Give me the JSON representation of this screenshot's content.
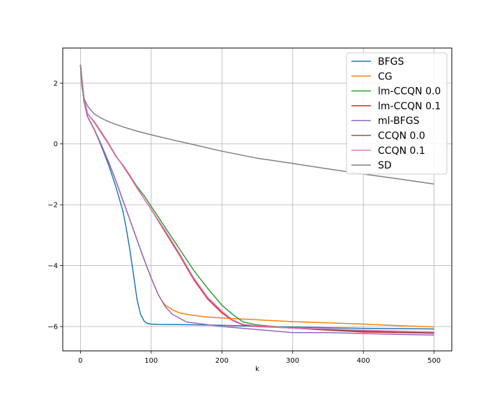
{
  "chart_data": {
    "type": "line",
    "title": "",
    "xlabel": "k",
    "ylabel": "",
    "xlim": [
      -25,
      525
    ],
    "ylim": [
      -6.8,
      3.15
    ],
    "xticks": [
      0,
      100,
      200,
      300,
      400,
      500
    ],
    "xtick_labels": [
      "0",
      "100",
      "200",
      "300",
      "400",
      "500"
    ],
    "yticks": [
      2,
      0,
      -2,
      -4,
      -6
    ],
    "ytick_labels": [
      "2",
      "0",
      "−2",
      "−4",
      "−6"
    ],
    "grid": true,
    "legend_position": "top-right",
    "series": [
      {
        "name": "BFGS",
        "color": "#1f77b4",
        "x": [
          0,
          5,
          10,
          20,
          30,
          40,
          50,
          60,
          65,
          70,
          75,
          80,
          85,
          90,
          95,
          100,
          110,
          150,
          200,
          250,
          300,
          350,
          400,
          450,
          500
        ],
        "y": [
          2.6,
          1.4,
          0.9,
          0.45,
          -0.1,
          -0.7,
          -1.4,
          -2.2,
          -2.8,
          -3.5,
          -4.3,
          -5.1,
          -5.6,
          -5.82,
          -5.9,
          -5.92,
          -5.93,
          -5.94,
          -5.96,
          -5.99,
          -6.02,
          -6.04,
          -6.06,
          -6.07,
          -6.08
        ]
      },
      {
        "name": "CG",
        "color": "#ff7f0e",
        "x": [
          0,
          5,
          10,
          20,
          30,
          40,
          50,
          60,
          70,
          80,
          90,
          100,
          110,
          115,
          120,
          130,
          140,
          150,
          175,
          200,
          250,
          300,
          350,
          400,
          450,
          500
        ],
        "y": [
          2.6,
          1.4,
          0.9,
          0.45,
          -0.05,
          -0.6,
          -1.2,
          -1.85,
          -2.5,
          -3.15,
          -3.8,
          -4.4,
          -4.95,
          -5.15,
          -5.3,
          -5.45,
          -5.55,
          -5.6,
          -5.68,
          -5.72,
          -5.78,
          -5.84,
          -5.88,
          -5.92,
          -5.97,
          -6.01
        ]
      },
      {
        "name": "lm-CCQN 0.0",
        "color": "#2ca02c",
        "x": [
          0,
          5,
          10,
          20,
          30,
          40,
          50,
          60,
          70,
          80,
          90,
          100,
          120,
          140,
          160,
          180,
          200,
          215,
          230,
          250,
          300,
          350,
          400,
          450,
          500
        ],
        "y": [
          2.6,
          1.5,
          1.0,
          0.7,
          0.35,
          0.0,
          -0.4,
          -0.7,
          -1.05,
          -1.4,
          -1.7,
          -2.05,
          -2.75,
          -3.45,
          -4.15,
          -4.75,
          -5.3,
          -5.6,
          -5.85,
          -5.95,
          -6.05,
          -6.1,
          -6.15,
          -6.2,
          -6.2
        ]
      },
      {
        "name": "lm-CCQN 0.1",
        "color": "#d62728",
        "x": [
          0,
          5,
          10,
          20,
          30,
          40,
          50,
          60,
          70,
          80,
          90,
          100,
          120,
          140,
          160,
          180,
          200,
          215,
          230,
          250,
          300,
          350,
          400,
          450,
          500
        ],
        "y": [
          2.6,
          1.5,
          1.0,
          0.7,
          0.35,
          0.0,
          -0.4,
          -0.7,
          -1.05,
          -1.45,
          -1.8,
          -2.15,
          -2.9,
          -3.65,
          -4.45,
          -5.1,
          -5.55,
          -5.8,
          -5.95,
          -6.0,
          -6.05,
          -6.12,
          -6.18,
          -6.2,
          -6.22
        ]
      },
      {
        "name": "ml-BFGS",
        "color": "#9467bd",
        "x": [
          0,
          5,
          10,
          20,
          30,
          40,
          50,
          60,
          70,
          80,
          90,
          100,
          110,
          115,
          120,
          130,
          150,
          200,
          250,
          300,
          350,
          400,
          450,
          500
        ],
        "y": [
          2.6,
          1.4,
          0.9,
          0.45,
          -0.05,
          -0.6,
          -1.2,
          -1.85,
          -2.5,
          -3.15,
          -3.8,
          -4.4,
          -4.95,
          -5.15,
          -5.35,
          -5.6,
          -5.85,
          -6.0,
          -6.1,
          -6.2,
          -6.2,
          -6.23,
          -6.26,
          -6.28
        ]
      },
      {
        "name": "CCQN 0.0",
        "color": "#8c564b",
        "x": [
          0,
          5,
          10,
          20,
          30,
          40,
          50,
          60,
          70,
          80,
          90,
          100,
          120,
          140,
          160,
          180,
          200,
          215,
          230,
          250,
          300,
          350,
          400,
          450,
          500
        ],
        "y": [
          2.6,
          1.5,
          1.0,
          0.7,
          0.35,
          0.0,
          -0.4,
          -0.72,
          -1.08,
          -1.45,
          -1.8,
          -2.15,
          -2.88,
          -3.62,
          -4.4,
          -5.05,
          -5.5,
          -5.78,
          -5.93,
          -5.98,
          -6.05,
          -6.1,
          -6.15,
          -6.18,
          -6.2
        ]
      },
      {
        "name": "CCQN 0.1",
        "color": "#e377c2",
        "x": [
          0,
          5,
          10,
          20,
          30,
          40,
          50,
          60,
          70,
          80,
          90,
          100,
          120,
          140,
          160,
          180,
          200,
          215,
          230,
          250,
          300,
          350,
          400,
          450,
          500
        ],
        "y": [
          2.6,
          1.5,
          1.0,
          0.72,
          0.38,
          0.02,
          -0.38,
          -0.72,
          -1.08,
          -1.45,
          -1.8,
          -2.15,
          -2.85,
          -3.6,
          -4.4,
          -5.05,
          -5.5,
          -5.78,
          -5.93,
          -5.98,
          -6.05,
          -6.08,
          -6.12,
          -6.15,
          -6.18
        ]
      },
      {
        "name": "SD",
        "color": "#7f7f7f",
        "x": [
          0,
          2,
          5,
          10,
          15,
          20,
          30,
          40,
          50,
          60,
          80,
          100,
          125,
          150,
          200,
          250,
          300,
          350,
          400,
          450,
          500
        ],
        "y": [
          2.6,
          1.9,
          1.5,
          1.25,
          1.1,
          0.98,
          0.84,
          0.73,
          0.64,
          0.56,
          0.42,
          0.3,
          0.16,
          0.03,
          -0.24,
          -0.47,
          -0.64,
          -0.82,
          -0.99,
          -1.15,
          -1.32
        ]
      }
    ]
  }
}
